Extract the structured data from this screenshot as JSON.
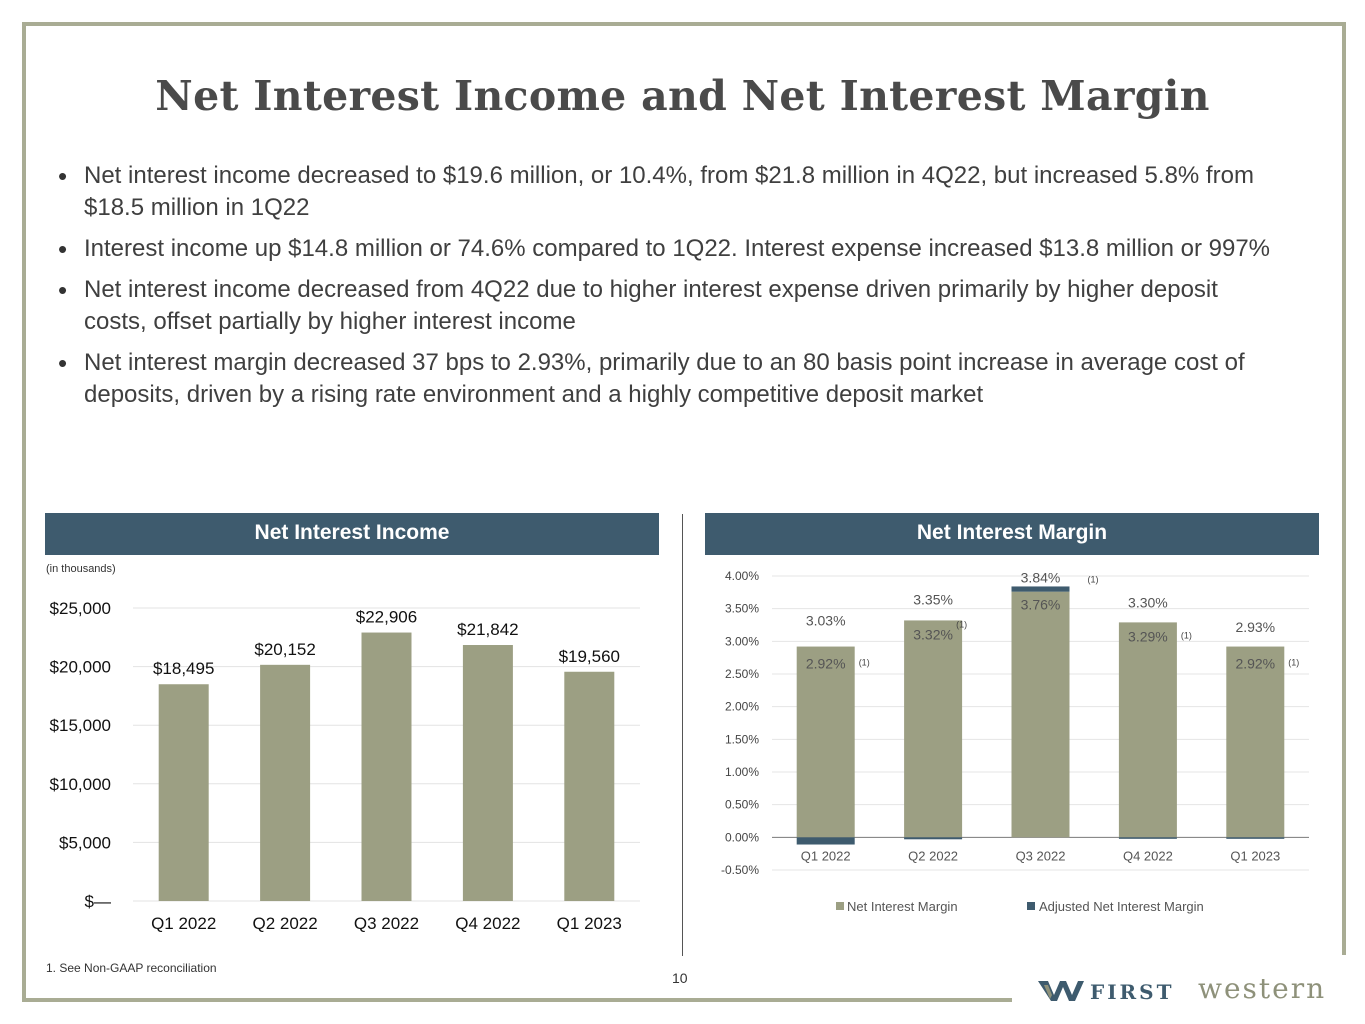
{
  "title": "Net Interest Income and Net Interest Margin",
  "bullets": [
    "Net interest income decreased to $19.6 million, or 10.4%, from $21.8 million in 4Q22, but increased 5.8% from $18.5 million in 1Q22",
    "Interest income up $14.8 million or 74.6% compared to 1Q22. Interest expense increased $13.8 million or 997%",
    "Net interest income decreased from 4Q22 due to higher interest expense driven primarily by higher deposit costs, offset partially by higher interest income",
    "Net interest margin decreased 37 bps to 2.93%, primarily due to an 80 basis point increase in average cost of deposits, driven by a rising rate environment and a highly competitive deposit market"
  ],
  "unit_note": "(in thousands)",
  "footnote": "1.   See Non-GAAP reconciliation",
  "page_number": "10",
  "logo": {
    "first": "FIRST",
    "western": "western"
  },
  "colors": {
    "bar": "#9c9f83",
    "adjusted": "#3e5b6e",
    "header": "#3e5b6e"
  },
  "chart_data": [
    {
      "type": "bar",
      "title": "Net Interest Income",
      "categories": [
        "Q1 2022",
        "Q2 2022",
        "Q3 2022",
        "Q4 2022",
        "Q1 2023"
      ],
      "values": [
        18495,
        20152,
        22906,
        21842,
        19560
      ],
      "value_labels": [
        "$18,495",
        "$20,152",
        "$22,906",
        "$21,842",
        "$19,560"
      ],
      "ylim": [
        0,
        25000
      ],
      "yticks": [
        0,
        5000,
        10000,
        15000,
        20000,
        25000
      ],
      "ytick_labels": [
        "$—",
        "$5,000",
        "$10,000",
        "$15,000",
        "$20,000",
        "$25,000"
      ],
      "ylabel": "(in thousands)",
      "grid": true
    },
    {
      "type": "bar",
      "title": "Net Interest Margin",
      "categories": [
        "Q1 2022",
        "Q2 2022",
        "Q3 2022",
        "Q4 2022",
        "Q1 2023"
      ],
      "series": [
        {
          "name": "Net Interest Margin",
          "values": [
            3.03,
            3.35,
            3.84,
            3.3,
            2.93
          ],
          "labels": [
            "3.03%",
            "3.35%",
            "3.84%",
            "3.30%",
            "2.93%"
          ]
        },
        {
          "name": "Adjusted Net Interest Margin",
          "values": [
            2.92,
            3.32,
            3.76,
            3.29,
            2.92
          ],
          "labels": [
            "2.92%",
            "3.32%",
            "3.76%",
            "3.29%",
            "2.92%"
          ],
          "footnote_marker": "(1)"
        }
      ],
      "adjusted_marker": "(1)",
      "ylim": [
        -0.5,
        4.0
      ],
      "yticks": [
        -0.5,
        0,
        0.5,
        1.0,
        1.5,
        2.0,
        2.5,
        3.0,
        3.5,
        4.0
      ],
      "ytick_labels": [
        "-0.50%",
        "0.00%",
        "0.50%",
        "1.00%",
        "1.50%",
        "2.00%",
        "2.50%",
        "3.00%",
        "3.50%",
        "4.00%"
      ],
      "legend": [
        "Net Interest Margin",
        "Adjusted Net Interest Margin"
      ],
      "legend_position": "bottom",
      "grid": true
    }
  ]
}
